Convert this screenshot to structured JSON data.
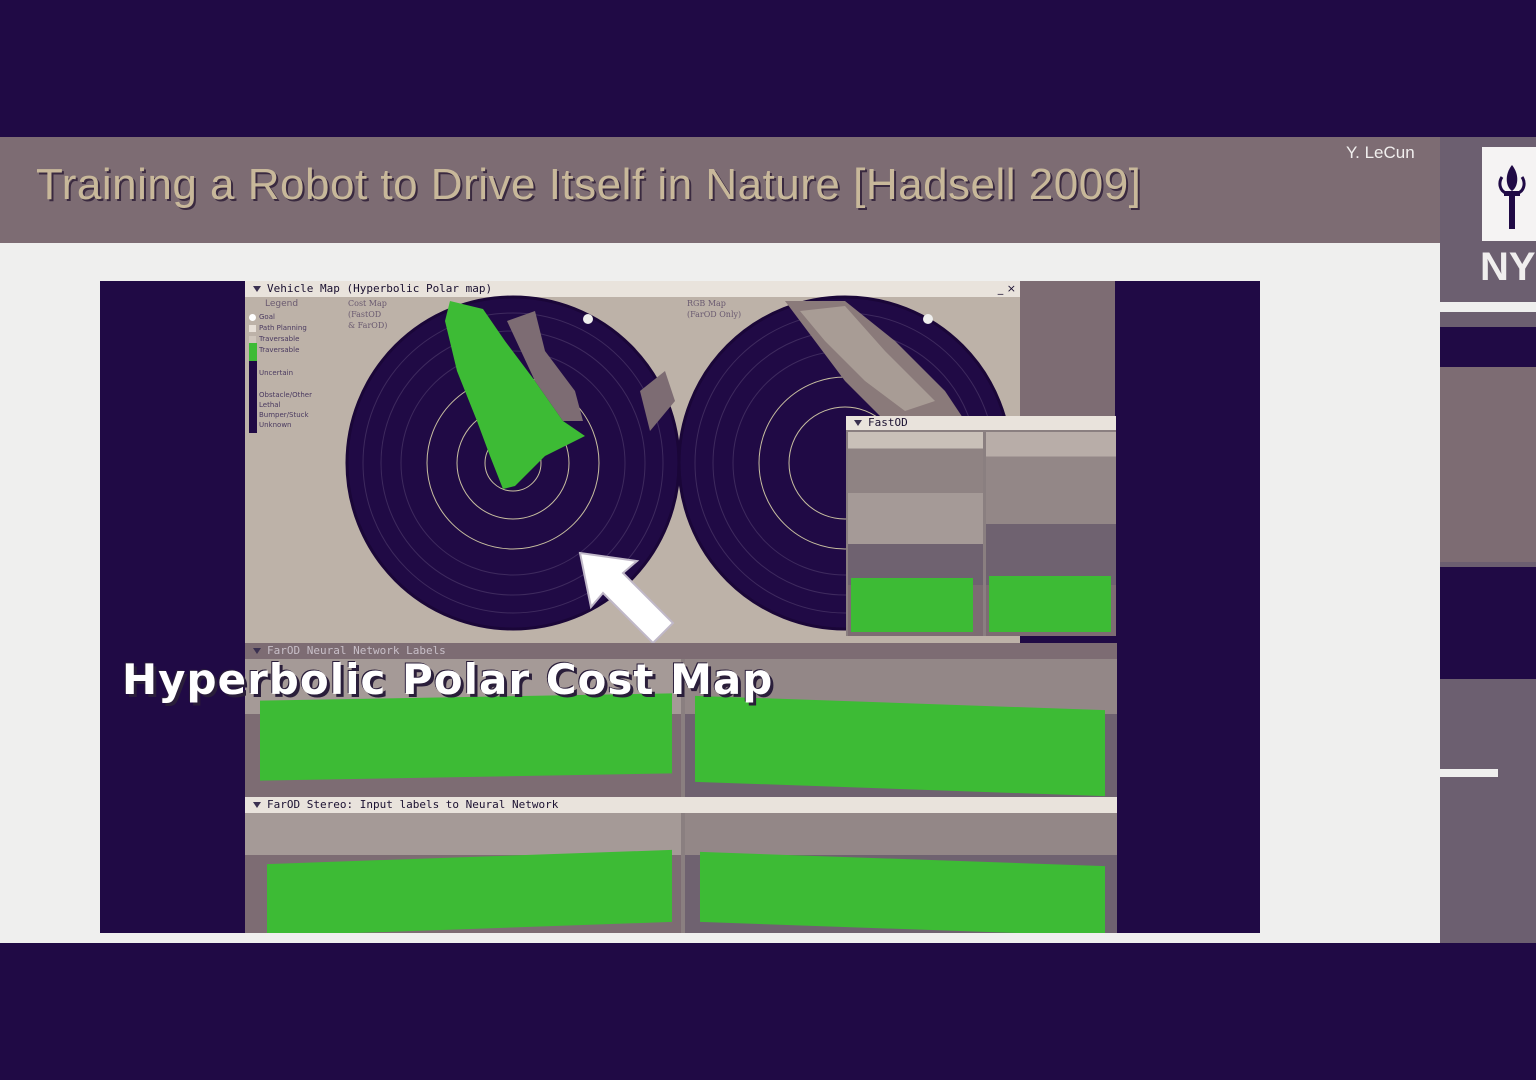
{
  "slide": {
    "title": "Training a Robot to Drive Itself in Nature [Hadsell 2009]",
    "author": "Y. LeCun"
  },
  "figure": {
    "vehicle_map_title": "Vehicle Map (Hyperbolic Polar map)",
    "legend_title": "Legend",
    "legend_items": [
      "Goal",
      "Path Planning",
      "Traversable",
      "Traversable",
      "Uncertain",
      "Obstacle/Other",
      "Lethal",
      "Bumper/Stuck",
      "Unknown"
    ],
    "cost_map_label_1": "Cost Map",
    "cost_map_label_2": "(FastOD",
    "cost_map_label_3": "& FarOD)",
    "rgb_map_label_1": "RGB Map",
    "rgb_map_label_2": "(FarOD Only)",
    "fastod_title": "FastOD",
    "network_labels_title": "FarOD Neural Network Labels",
    "stereo_title": "FarOD Stereo: Input labels to Neural Network",
    "overlay_caption": "Hyperbolic Polar Cost Map",
    "window_controls": "_ ×"
  },
  "brand": {
    "logo_text": "NY",
    "accent": "#3dbb35",
    "background": "#200a45"
  }
}
